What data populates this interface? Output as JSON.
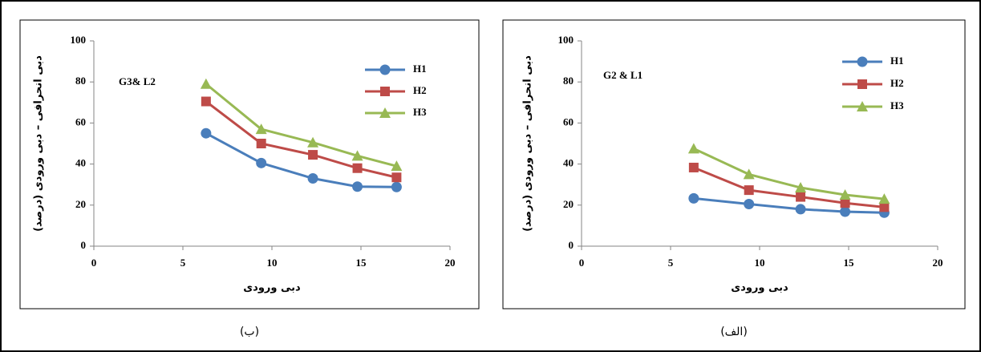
{
  "chart_data": [
    {
      "type": "line",
      "title": "G3& L2",
      "caption": "(ب)",
      "xlabel": "دبی ورودی",
      "ylabel": "دبی انحرافی – دبی ورودی (درصد)",
      "xlim": [
        0,
        20
      ],
      "xticks": [
        0,
        5,
        10,
        15,
        20
      ],
      "ylim": [
        0,
        100
      ],
      "yticks": [
        0,
        20,
        40,
        60,
        80,
        100
      ],
      "grid": false,
      "x": [
        6.3,
        9.4,
        12.3,
        14.8,
        17
      ],
      "series": [
        {
          "name": "H1",
          "color": "#4a7ebb",
          "marker": "circle",
          "values": [
            55,
            40.5,
            33,
            29,
            28.8
          ]
        },
        {
          "name": "H2",
          "color": "#be4b48",
          "marker": "square",
          "values": [
            70.5,
            50,
            44.5,
            38,
            33.5
          ]
        },
        {
          "name": "H3",
          "color": "#98b954",
          "marker": "triangle",
          "values": [
            79,
            57,
            50.5,
            44,
            39
          ]
        }
      ]
    },
    {
      "type": "line",
      "title": "G2 & L1",
      "caption": "(الف)",
      "xlabel": "دبی ورودی",
      "ylabel": "دبی انحرافی – دبی ورودی (درصد)",
      "xlim": [
        0,
        20
      ],
      "xticks": [
        0,
        5,
        10,
        15,
        20
      ],
      "ylim": [
        0,
        100
      ],
      "yticks": [
        0,
        20,
        40,
        60,
        80,
        100
      ],
      "grid": false,
      "x": [
        6.3,
        9.4,
        12.3,
        14.8,
        17
      ],
      "series": [
        {
          "name": "H1",
          "color": "#4a7ebb",
          "marker": "circle",
          "values": [
            23.3,
            20.5,
            18,
            16.8,
            16.3
          ]
        },
        {
          "name": "H2",
          "color": "#be4b48",
          "marker": "square",
          "values": [
            38.3,
            27.3,
            24,
            21,
            19
          ]
        },
        {
          "name": "H3",
          "color": "#98b954",
          "marker": "triangle",
          "values": [
            47.5,
            35,
            28.5,
            25,
            23
          ]
        }
      ]
    }
  ]
}
